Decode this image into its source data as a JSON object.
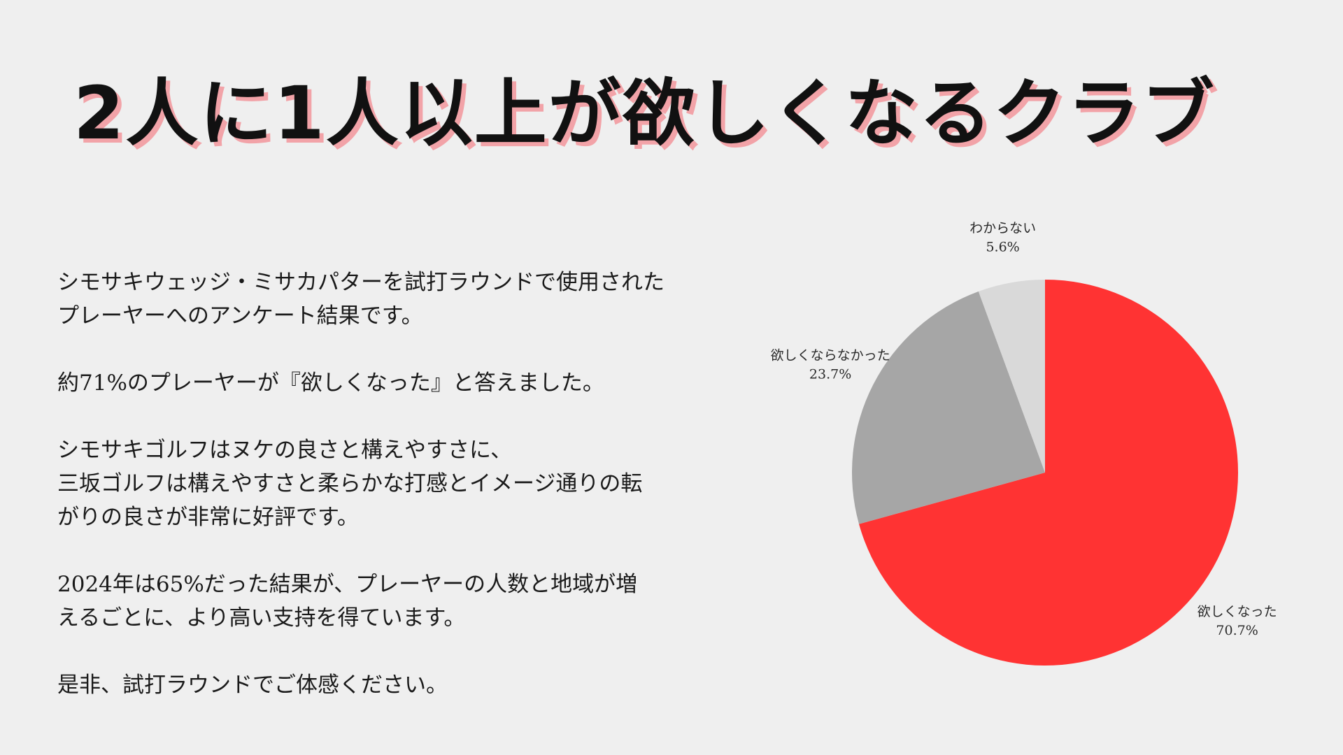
{
  "title": "2人に1人以上が欲しくなるクラブ",
  "paragraphs": [
    [
      "シモサキウェッジ・ミサカパターを試打ラウンドで使用された",
      "プレーヤーへのアンケート結果です。"
    ],
    [
      "約71%のプレーヤーが『欲しくなった』と答えました。"
    ],
    [
      "シモサキゴルフはヌケの良さと構えやすさに、",
      "三坂ゴルフは構えやすさと柔らかな打感とイメージ通りの転",
      "がりの良さが非常に好評です。"
    ],
    [
      "2024年は65%だった結果が、プレーヤーの人数と地域が増",
      "えるごとに、より高い支持を得ています。"
    ],
    [
      "是非、試打ラウンドでご体感ください。"
    ]
  ],
  "chart_data": {
    "type": "pie",
    "start": "top",
    "direction": "clockwise",
    "slices": [
      {
        "label": "欲しくなった",
        "value": 70.7,
        "display": "70.7%",
        "color": "#ff3333"
      },
      {
        "label": "欲しくならなかった",
        "value": 23.7,
        "display": "23.7%",
        "color": "#a6a6a6"
      },
      {
        "label": "わからない",
        "value": 5.6,
        "display": "5.6%",
        "color": "#d9d9d9"
      }
    ]
  }
}
